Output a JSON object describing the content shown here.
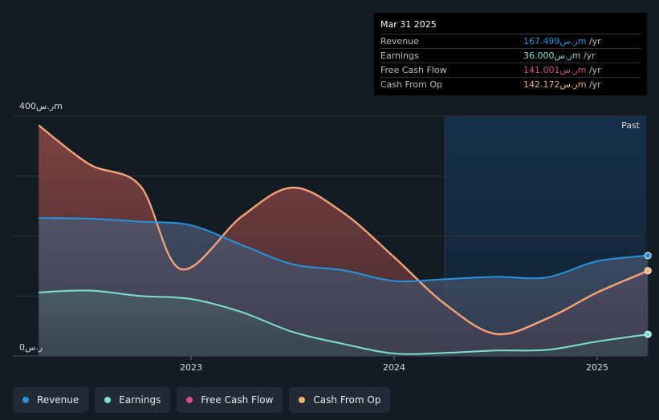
{
  "chart_data": {
    "type": "area",
    "y_unit_top": "400ر.سm",
    "y_unit_bottom": "0ر.س",
    "ylim": [
      0,
      400
    ],
    "x_ticks": [
      {
        "label": "2023",
        "x": 2023.0
      },
      {
        "label": "2024",
        "x": 2024.0
      },
      {
        "label": "2025",
        "x": 2025.0
      }
    ],
    "past_label": "Past",
    "series": [
      {
        "name": "Revenue",
        "color": "#2394df",
        "points": [
          [
            2022.25,
            230
          ],
          [
            2022.5,
            229
          ],
          [
            2022.75,
            224
          ],
          [
            2023.0,
            218
          ],
          [
            2023.25,
            185
          ],
          [
            2023.5,
            153
          ],
          [
            2023.75,
            143
          ],
          [
            2024.0,
            125
          ],
          [
            2024.25,
            128
          ],
          [
            2024.5,
            132
          ],
          [
            2024.75,
            131
          ],
          [
            2025.0,
            158
          ],
          [
            2025.25,
            167.499
          ]
        ]
      },
      {
        "name": "Earnings",
        "color": "#7de2d1",
        "points": [
          [
            2022.25,
            106
          ],
          [
            2022.5,
            109
          ],
          [
            2022.75,
            100
          ],
          [
            2023.0,
            95
          ],
          [
            2023.25,
            73
          ],
          [
            2023.5,
            40
          ],
          [
            2023.75,
            20
          ],
          [
            2024.0,
            4
          ],
          [
            2024.25,
            5
          ],
          [
            2024.5,
            9
          ],
          [
            2024.75,
            10
          ],
          [
            2025.0,
            24
          ],
          [
            2025.25,
            36.0
          ]
        ]
      },
      {
        "name": "Free Cash Flow",
        "color": "#d64e8c",
        "points": [
          [
            2022.25,
            384
          ],
          [
            2022.5,
            319
          ],
          [
            2022.75,
            283
          ],
          [
            2022.95,
            144
          ],
          [
            2023.25,
            232
          ],
          [
            2023.5,
            280
          ],
          [
            2023.75,
            238
          ],
          [
            2024.0,
            164
          ],
          [
            2024.25,
            86
          ],
          [
            2024.5,
            36
          ],
          [
            2024.75,
            61
          ],
          [
            2025.0,
            105
          ],
          [
            2025.25,
            141.001
          ]
        ]
      },
      {
        "name": "Cash From Op",
        "color": "#f2b26e",
        "points": [
          [
            2022.25,
            385
          ],
          [
            2022.5,
            320
          ],
          [
            2022.75,
            284
          ],
          [
            2022.95,
            145
          ],
          [
            2023.25,
            233
          ],
          [
            2023.5,
            281
          ],
          [
            2023.75,
            239
          ],
          [
            2024.0,
            165
          ],
          [
            2024.25,
            87
          ],
          [
            2024.5,
            37
          ],
          [
            2024.75,
            62
          ],
          [
            2025.0,
            106
          ],
          [
            2025.25,
            142.172
          ]
        ]
      }
    ],
    "past_region_start_x": 2024.25,
    "x_range": [
      2022.125,
      2025.25
    ]
  },
  "tooltip": {
    "date": "Mar 31 2025",
    "rows": [
      {
        "label": "Revenue",
        "value": "167.499ر.سm",
        "unit": " /yr",
        "color": "#2394df"
      },
      {
        "label": "Earnings",
        "value": "36.000ر.سm",
        "unit": " /yr",
        "color": "#7de2d1"
      },
      {
        "label": "Free Cash Flow",
        "value": "141.001ر.سm",
        "unit": " /yr",
        "color": "#d64e8c"
      },
      {
        "label": "Cash From Op",
        "value": "142.172ر.سm",
        "unit": " /yr",
        "color": "#f2b26e"
      }
    ]
  },
  "legend": [
    {
      "label": "Revenue",
      "color": "#2394df"
    },
    {
      "label": "Earnings",
      "color": "#7de2d1"
    },
    {
      "label": "Free Cash Flow",
      "color": "#d64e8c"
    },
    {
      "label": "Cash From Op",
      "color": "#f2b26e"
    }
  ]
}
